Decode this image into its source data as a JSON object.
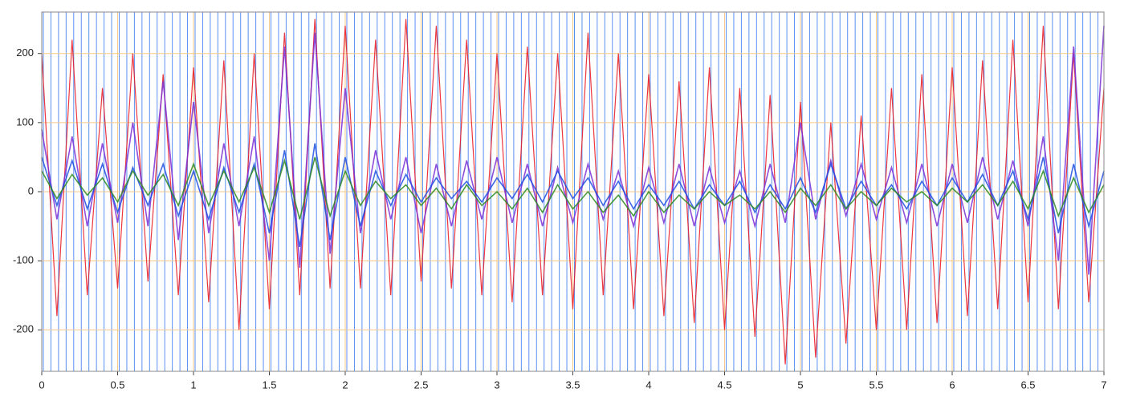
{
  "chart_data": {
    "type": "line",
    "x": [
      0,
      0.1,
      0.2,
      0.3,
      0.4,
      0.5,
      0.6,
      0.7,
      0.8,
      0.9,
      1,
      1.1,
      1.2,
      1.3,
      1.4,
      1.5,
      1.6,
      1.7,
      1.8,
      1.9,
      2,
      2.1,
      2.2,
      2.3,
      2.4,
      2.5,
      2.6,
      2.7,
      2.8,
      2.9,
      3,
      3.1,
      3.2,
      3.3,
      3.4,
      3.5,
      3.6,
      3.7,
      3.8,
      3.9,
      4,
      4.1,
      4.2,
      4.3,
      4.4,
      4.5,
      4.6,
      4.7,
      4.8,
      4.9,
      5,
      5.1,
      5.2,
      5.3,
      5.4,
      5.5,
      5.6,
      5.7,
      5.8,
      5.9,
      6,
      6.1,
      6.2,
      6.3,
      6.4,
      6.5,
      6.6,
      6.7,
      6.8,
      6.9,
      7
    ],
    "series": [
      {
        "color": "#e8141c",
        "values": [
          200,
          -180,
          220,
          -150,
          150,
          -140,
          200,
          -130,
          170,
          -150,
          180,
          -160,
          190,
          -200,
          200,
          -170,
          230,
          -150,
          250,
          -140,
          240,
          -140,
          220,
          -150,
          250,
          -130,
          240,
          -140,
          220,
          -150,
          200,
          -160,
          210,
          -150,
          200,
          -170,
          230,
          -150,
          200,
          -170,
          170,
          -180,
          160,
          -190,
          180,
          -200,
          150,
          -210,
          140,
          -250,
          130,
          -240,
          100,
          -220,
          110,
          -200,
          150,
          -200,
          170,
          -190,
          180,
          -180,
          190,
          -170,
          220,
          -160,
          240,
          -170,
          200,
          -160,
          150
        ]
      },
      {
        "color": "#7b2fd6",
        "values": [
          90,
          -40,
          80,
          -50,
          70,
          -45,
          100,
          -50,
          160,
          -70,
          130,
          -60,
          70,
          -50,
          80,
          -100,
          210,
          -110,
          230,
          -90,
          150,
          -60,
          60,
          -40,
          50,
          -60,
          40,
          -50,
          45,
          -40,
          50,
          -45,
          40,
          -50,
          35,
          -45,
          40,
          -40,
          30,
          -50,
          35,
          -45,
          40,
          -50,
          35,
          -45,
          30,
          -50,
          40,
          -45,
          100,
          -40,
          45,
          -35,
          40,
          -40,
          35,
          -45,
          40,
          -50,
          40,
          -45,
          50,
          -40,
          45,
          -50,
          80,
          -100,
          210,
          -120,
          240
        ]
      },
      {
        "color": "#1f4fe0",
        "values": [
          50,
          -20,
          45,
          -25,
          40,
          -30,
          35,
          -20,
          40,
          -35,
          30,
          -40,
          35,
          -30,
          40,
          -60,
          60,
          -80,
          70,
          -70,
          50,
          -50,
          30,
          -20,
          25,
          -15,
          20,
          -10,
          15,
          -15,
          20,
          -10,
          25,
          -15,
          30,
          -10,
          20,
          -20,
          15,
          -25,
          10,
          -20,
          15,
          -25,
          10,
          -20,
          15,
          -30,
          10,
          -25,
          20,
          -30,
          40,
          -25,
          15,
          -20,
          10,
          -25,
          15,
          -20,
          20,
          -15,
          25,
          -20,
          30,
          -40,
          50,
          -60,
          40,
          -50,
          30
        ]
      },
      {
        "color": "#2e8b22",
        "values": [
          30,
          -10,
          25,
          -5,
          20,
          -15,
          30,
          -5,
          25,
          -20,
          40,
          -20,
          30,
          -15,
          35,
          -30,
          45,
          -40,
          50,
          -35,
          30,
          -20,
          15,
          -10,
          10,
          -20,
          5,
          -25,
          10,
          -20,
          0,
          -25,
          5,
          -30,
          10,
          -25,
          0,
          -30,
          -5,
          -35,
          0,
          -30,
          -5,
          -25,
          0,
          -20,
          -5,
          -25,
          0,
          -30,
          5,
          -20,
          10,
          -25,
          0,
          -20,
          5,
          -15,
          0,
          -20,
          5,
          -15,
          10,
          -20,
          15,
          -25,
          30,
          -35,
          20,
          -30,
          10
        ]
      }
    ],
    "xlim": [
      0,
      7
    ],
    "xticks": [
      0,
      0.5,
      1,
      1.5,
      2,
      2.5,
      3,
      3.5,
      4,
      4.5,
      5,
      5.5,
      6,
      6.5,
      7
    ],
    "ylim": [
      -260,
      260
    ],
    "yticks": [
      -200,
      -100,
      0,
      100,
      200
    ],
    "grid": true,
    "grid_color": "#f5c98a"
  }
}
